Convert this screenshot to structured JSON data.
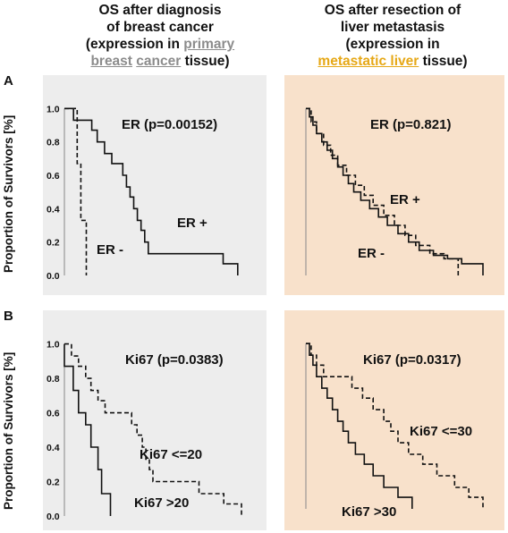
{
  "header": {
    "left_line1": "OS after diagnosis",
    "left_line2": "of breast cancer",
    "left_line3": "(expression in",
    "left_line3b": "primary",
    "left_line4a": "breast",
    "left_line4b": "cancer",
    "left_line4c": "tissue)",
    "right_line1": "OS after resection of",
    "right_line2": "liver metastasis",
    "right_line3": "(expression in",
    "right_line4a": "metastatic liver",
    "right_line4b": "tissue)"
  },
  "rows": {
    "a": "A",
    "b": "B"
  },
  "ylabel": "Proportion of Survivors [%]",
  "colors": {
    "left_panel_bg": "#ededed",
    "right_panel_bg": "#f8e1cb",
    "gold": "#e6a817"
  },
  "chart_data": [
    {
      "type": "line",
      "panel": "A-left",
      "y_ticks": [
        "1.0",
        "0.8",
        "0.6",
        "0.4",
        "0.2",
        "0.0"
      ],
      "ylim": [
        0,
        1.05
      ],
      "x": [
        0,
        1
      ],
      "annotations": {
        "title": "ER (p=0.00152)",
        "series1": "ER +",
        "series2": "ER -"
      },
      "series": [
        {
          "name": "ER +",
          "style": "solid",
          "steps": [
            [
              0,
              1.0
            ],
            [
              0.05,
              0.93
            ],
            [
              0.12,
              0.93
            ],
            [
              0.15,
              0.87
            ],
            [
              0.18,
              0.8
            ],
            [
              0.22,
              0.73
            ],
            [
              0.26,
              0.67
            ],
            [
              0.3,
              0.67
            ],
            [
              0.32,
              0.6
            ],
            [
              0.34,
              0.53
            ],
            [
              0.36,
              0.47
            ],
            [
              0.38,
              0.4
            ],
            [
              0.4,
              0.33
            ],
            [
              0.42,
              0.27
            ],
            [
              0.44,
              0.2
            ],
            [
              0.46,
              0.13
            ],
            [
              0.87,
              0.13
            ],
            [
              0.87,
              0.07
            ],
            [
              0.95,
              0.07
            ],
            [
              0.95,
              0.0
            ]
          ]
        },
        {
          "name": "ER -",
          "style": "dashed",
          "steps": [
            [
              0,
              1.0
            ],
            [
              0.07,
              1.0
            ],
            [
              0.07,
              0.67
            ],
            [
              0.09,
              0.67
            ],
            [
              0.09,
              0.33
            ],
            [
              0.12,
              0.33
            ],
            [
              0.12,
              0.0
            ]
          ]
        }
      ]
    },
    {
      "type": "line",
      "panel": "A-right",
      "y_ticks": [],
      "ylim": [
        0,
        1.05
      ],
      "x": [
        0,
        1
      ],
      "annotations": {
        "title": "ER (p=0.821)",
        "series1": "ER +",
        "series2": "ER -"
      },
      "series": [
        {
          "name": "ER +",
          "style": "solid",
          "steps": [
            [
              0,
              1.0
            ],
            [
              0.02,
              0.95
            ],
            [
              0.04,
              0.9
            ],
            [
              0.06,
              0.85
            ],
            [
              0.09,
              0.8
            ],
            [
              0.12,
              0.75
            ],
            [
              0.15,
              0.7
            ],
            [
              0.18,
              0.65
            ],
            [
              0.21,
              0.6
            ],
            [
              0.24,
              0.55
            ],
            [
              0.27,
              0.5
            ],
            [
              0.31,
              0.45
            ],
            [
              0.36,
              0.4
            ],
            [
              0.41,
              0.35
            ],
            [
              0.46,
              0.3
            ],
            [
              0.52,
              0.25
            ],
            [
              0.58,
              0.2
            ],
            [
              0.64,
              0.15
            ],
            [
              0.72,
              0.12
            ],
            [
              0.8,
              0.1
            ],
            [
              0.88,
              0.07
            ],
            [
              1.0,
              0.07
            ],
            [
              1.0,
              0.0
            ]
          ]
        },
        {
          "name": "ER -",
          "style": "dashed",
          "steps": [
            [
              0,
              1.0
            ],
            [
              0.03,
              0.92
            ],
            [
              0.06,
              0.85
            ],
            [
              0.1,
              0.78
            ],
            [
              0.14,
              0.72
            ],
            [
              0.18,
              0.66
            ],
            [
              0.23,
              0.6
            ],
            [
              0.28,
              0.54
            ],
            [
              0.33,
              0.48
            ],
            [
              0.38,
              0.42
            ],
            [
              0.44,
              0.36
            ],
            [
              0.5,
              0.3
            ],
            [
              0.56,
              0.24
            ],
            [
              0.62,
              0.18
            ],
            [
              0.7,
              0.13
            ],
            [
              0.78,
              0.1
            ],
            [
              0.86,
              0.1
            ],
            [
              0.86,
              0.0
            ]
          ]
        }
      ]
    },
    {
      "type": "line",
      "panel": "B-left",
      "y_ticks": [
        "1.0",
        "0.8",
        "0.6",
        "0.4",
        "0.2",
        "0.0"
      ],
      "ylim": [
        0,
        1.05
      ],
      "x": [
        0,
        1
      ],
      "annotations": {
        "title": "Ki67 (p=0.0383)",
        "series1": "Ki67 <=20",
        "series2": "Ki67 >20"
      },
      "series": [
        {
          "name": "Ki67 <=20",
          "style": "dashed",
          "steps": [
            [
              0,
              1.0
            ],
            [
              0.04,
              0.93
            ],
            [
              0.08,
              0.87
            ],
            [
              0.12,
              0.8
            ],
            [
              0.15,
              0.73
            ],
            [
              0.19,
              0.67
            ],
            [
              0.23,
              0.6
            ],
            [
              0.36,
              0.6
            ],
            [
              0.38,
              0.53
            ],
            [
              0.41,
              0.47
            ],
            [
              0.44,
              0.4
            ],
            [
              0.46,
              0.33
            ],
            [
              0.48,
              0.27
            ],
            [
              0.5,
              0.2
            ],
            [
              0.74,
              0.2
            ],
            [
              0.76,
              0.13
            ],
            [
              0.88,
              0.13
            ],
            [
              0.9,
              0.07
            ],
            [
              1.0,
              0.07
            ],
            [
              1.0,
              0.0
            ]
          ]
        },
        {
          "name": "Ki67 >20",
          "style": "solid",
          "steps": [
            [
              0,
              1.0
            ],
            [
              0.0,
              0.87
            ],
            [
              0.05,
              0.87
            ],
            [
              0.05,
              0.73
            ],
            [
              0.08,
              0.73
            ],
            [
              0.08,
              0.6
            ],
            [
              0.12,
              0.6
            ],
            [
              0.12,
              0.53
            ],
            [
              0.15,
              0.53
            ],
            [
              0.15,
              0.4
            ],
            [
              0.19,
              0.4
            ],
            [
              0.19,
              0.27
            ],
            [
              0.21,
              0.27
            ],
            [
              0.21,
              0.13
            ],
            [
              0.26,
              0.13
            ],
            [
              0.26,
              0.0
            ]
          ]
        }
      ]
    },
    {
      "type": "line",
      "panel": "B-right",
      "y_ticks": [],
      "ylim": [
        0,
        1.05
      ],
      "x": [
        0,
        1
      ],
      "annotations": {
        "title": "Ki67 (p=0.0317)",
        "series1": "Ki67 <=30",
        "series2": "Ki67 >30"
      },
      "series": [
        {
          "name": "Ki67 <=30",
          "style": "dashed",
          "steps": [
            [
              0,
              1.0
            ],
            [
              0.03,
              0.93
            ],
            [
              0.06,
              0.87
            ],
            [
              0.1,
              0.8
            ],
            [
              0.22,
              0.8
            ],
            [
              0.26,
              0.73
            ],
            [
              0.32,
              0.67
            ],
            [
              0.38,
              0.6
            ],
            [
              0.44,
              0.53
            ],
            [
              0.48,
              0.47
            ],
            [
              0.52,
              0.4
            ],
            [
              0.58,
              0.33
            ],
            [
              0.66,
              0.27
            ],
            [
              0.74,
              0.2
            ],
            [
              0.84,
              0.13
            ],
            [
              0.92,
              0.07
            ],
            [
              1.0,
              0.07
            ],
            [
              1.0,
              0.0
            ]
          ]
        },
        {
          "name": "Ki67 >30",
          "style": "solid",
          "steps": [
            [
              0,
              1.0
            ],
            [
              0.02,
              0.93
            ],
            [
              0.04,
              0.87
            ],
            [
              0.06,
              0.8
            ],
            [
              0.09,
              0.73
            ],
            [
              0.12,
              0.67
            ],
            [
              0.15,
              0.6
            ],
            [
              0.18,
              0.53
            ],
            [
              0.21,
              0.47
            ],
            [
              0.24,
              0.4
            ],
            [
              0.28,
              0.33
            ],
            [
              0.33,
              0.27
            ],
            [
              0.38,
              0.2
            ],
            [
              0.44,
              0.13
            ],
            [
              0.52,
              0.07
            ],
            [
              0.6,
              0.07
            ],
            [
              0.6,
              0.0
            ]
          ]
        }
      ]
    }
  ]
}
